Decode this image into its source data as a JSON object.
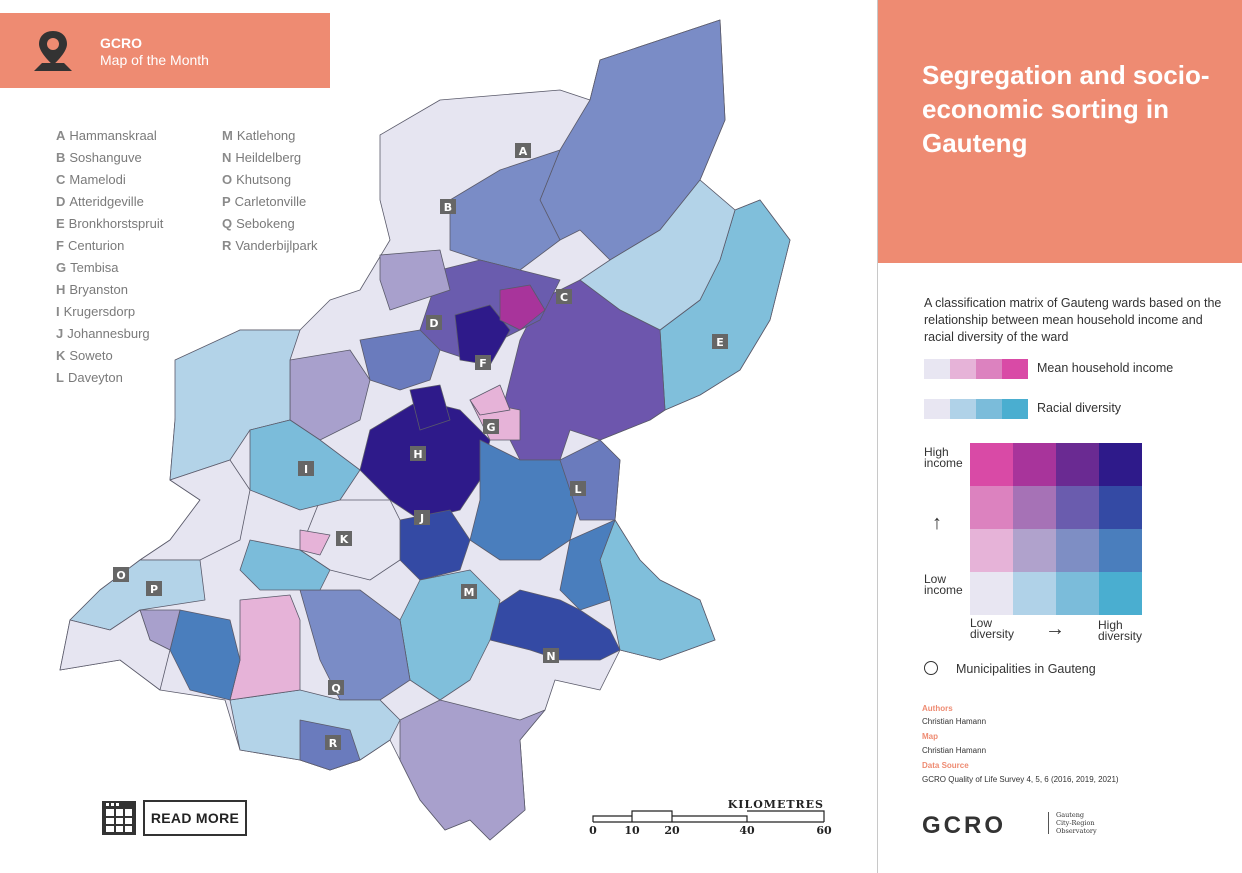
{
  "header": {
    "org": "GCRO",
    "subtitle": "Map of the Month",
    "icon": "map-pin-icon",
    "color": "#ee8b72"
  },
  "places": [
    {
      "letter": "A",
      "name": "Hammanskraal"
    },
    {
      "letter": "B",
      "name": "Soshanguve"
    },
    {
      "letter": "C",
      "name": "Mamelodi"
    },
    {
      "letter": "D",
      "name": "Atteridgeville"
    },
    {
      "letter": "E",
      "name": "Bronkhorstspruit"
    },
    {
      "letter": "F",
      "name": "Centurion"
    },
    {
      "letter": "G",
      "name": "Tembisa"
    },
    {
      "letter": "H",
      "name": "Bryanston"
    },
    {
      "letter": "I",
      "name": "Krugersdorp"
    },
    {
      "letter": "J",
      "name": "Johannesburg"
    },
    {
      "letter": "K",
      "name": "Soweto"
    },
    {
      "letter": "L",
      "name": "Daveyton"
    },
    {
      "letter": "M",
      "name": "Katlehong"
    },
    {
      "letter": "N",
      "name": "Heildelberg"
    },
    {
      "letter": "O",
      "name": "Khutsong"
    },
    {
      "letter": "P",
      "name": "Carletonville"
    },
    {
      "letter": "Q",
      "name": "Sebokeng"
    },
    {
      "letter": "R",
      "name": "Vanderbijlpark"
    }
  ],
  "read_more": {
    "label": "READ MORE",
    "icon": "grid-document-icon"
  },
  "scale": {
    "title": "KILOMETRES",
    "ticks": [
      "0",
      "10",
      "20",
      "40",
      "60"
    ]
  },
  "title": "Segregation and socio-economic sorting in Gauteng",
  "description": "A classification matrix of Gauteng wards based on the relationship between mean household income and racial diversity of the ward",
  "income_legend": {
    "label": "Mean household income",
    "colors": [
      "#e8e6f2",
      "#e6b3d8",
      "#dc82bf",
      "#d94aa6"
    ]
  },
  "diversity_legend": {
    "label": "Racial diversity",
    "colors": [
      "#e8e6f2",
      "#b0d2e8",
      "#7bbcda",
      "#4aaed0"
    ]
  },
  "matrix": {
    "rows": [
      [
        "#d94aa6",
        "#a8349b",
        "#6a2a92",
        "#2e1a8a"
      ],
      [
        "#dc82bf",
        "#a672b6",
        "#6a5cae",
        "#344aa4"
      ],
      [
        "#e6b3d8",
        "#b0a2cc",
        "#7e8ec4",
        "#4a7ebd"
      ],
      [
        "#e8e6f2",
        "#b0d2e8",
        "#7bbcda",
        "#4aaed0"
      ]
    ],
    "high_income": "High income",
    "low_income": "Low income",
    "low_diversity": "Low diversity",
    "high_diversity": "High diversity",
    "up_arrow": "↑",
    "right_arrow": "→"
  },
  "municipalities_label": "Municipalities in Gauteng",
  "credits": {
    "authors_label": "Authors",
    "authors": "Christian Hamann",
    "map_label": "Map",
    "map": "Christian Hamann",
    "source_label": "Data Source",
    "source": "GCRO Quality of Life Survey 4, 5, 6 (2016, 2019, 2021)"
  },
  "logo": {
    "text": "GCRO",
    "full_name": [
      "Gauteng",
      "City-Region",
      "Observatory"
    ]
  }
}
